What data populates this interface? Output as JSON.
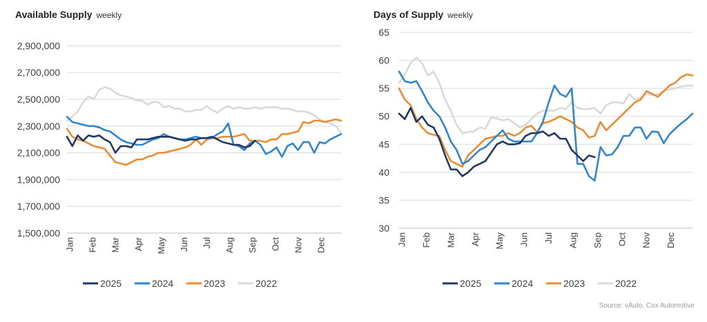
{
  "colors": {
    "2025": "#1f3864",
    "2024": "#2e86d1",
    "2023": "#ef8a2f",
    "2022": "#d9d9d9"
  },
  "source": "Source: vAuto, Cox Automotive",
  "chart_data": [
    {
      "type": "line",
      "title": "Available Supply",
      "subtitle": "weekly",
      "ylim": [
        1500000,
        3000000
      ],
      "yticks": [
        1500000,
        1700000,
        1900000,
        2100000,
        2300000,
        2500000,
        2700000,
        2900000
      ],
      "ytick_labels": [
        "1,500,000",
        "1,700,000",
        "1,900,000",
        "2,100,000",
        "2,300,000",
        "2,500,000",
        "2,700,000",
        "2,900,000"
      ],
      "xticks": [
        "Jan",
        "Feb",
        "Mar",
        "Apr",
        "May",
        "Jun",
        "Jul",
        "Aug",
        "Sep",
        "Oct",
        "Nov",
        "Dec"
      ],
      "grid": true,
      "legend": "bottom",
      "series": [
        {
          "name": "2025",
          "values": [
            2220000,
            2150000,
            2230000,
            2190000,
            2230000,
            2220000,
            2230000,
            2200000,
            2180000,
            2100000,
            2150000,
            2150000,
            2140000,
            2200000,
            2200000,
            2200000,
            2210000,
            2220000,
            2220000,
            2220000,
            2210000,
            2200000,
            2190000,
            2200000,
            2200000,
            2210000,
            2210000,
            2220000,
            2200000,
            2180000,
            2170000,
            2160000,
            2160000,
            2140000,
            2150000,
            2190000
          ]
        },
        {
          "name": "2024",
          "values": [
            2370000,
            2330000,
            2320000,
            2310000,
            2300000,
            2300000,
            2290000,
            2270000,
            2260000,
            2230000,
            2200000,
            2180000,
            2170000,
            2160000,
            2160000,
            2180000,
            2200000,
            2210000,
            2240000,
            2220000,
            2210000,
            2200000,
            2200000,
            2210000,
            2220000,
            2210000,
            2210000,
            2210000,
            2240000,
            2260000,
            2320000,
            2160000,
            2150000,
            2120000,
            2170000,
            2190000,
            2160000,
            2090000,
            2110000,
            2140000,
            2070000,
            2150000,
            2170000,
            2120000,
            2180000,
            2180000,
            2100000,
            2180000,
            2170000,
            2200000,
            2220000,
            2240000
          ]
        },
        {
          "name": "2023",
          "values": [
            2280000,
            2220000,
            2200000,
            2190000,
            2170000,
            2150000,
            2140000,
            2130000,
            2080000,
            2030000,
            2020000,
            2010000,
            2030000,
            2050000,
            2050000,
            2070000,
            2080000,
            2100000,
            2100000,
            2110000,
            2120000,
            2130000,
            2140000,
            2160000,
            2200000,
            2160000,
            2200000,
            2210000,
            2210000,
            2220000,
            2220000,
            2220000,
            2230000,
            2240000,
            2190000,
            2190000,
            2190000,
            2180000,
            2200000,
            2200000,
            2240000,
            2240000,
            2250000,
            2260000,
            2330000,
            2320000,
            2340000,
            2340000,
            2330000,
            2340000,
            2350000,
            2340000
          ]
        },
        {
          "name": "2022",
          "values": [
            2340000,
            2370000,
            2410000,
            2480000,
            2520000,
            2500000,
            2570000,
            2590000,
            2580000,
            2550000,
            2530000,
            2520000,
            2510000,
            2490000,
            2490000,
            2460000,
            2480000,
            2480000,
            2440000,
            2450000,
            2430000,
            2430000,
            2410000,
            2410000,
            2420000,
            2420000,
            2450000,
            2420000,
            2400000,
            2430000,
            2450000,
            2430000,
            2440000,
            2430000,
            2430000,
            2440000,
            2430000,
            2440000,
            2440000,
            2440000,
            2430000,
            2430000,
            2420000,
            2410000,
            2410000,
            2400000,
            2380000,
            2350000,
            2330000,
            2320000,
            2300000,
            2250000
          ]
        }
      ]
    },
    {
      "type": "line",
      "title": "Days of Supply",
      "subtitle": "weekly",
      "ylim": [
        30,
        65
      ],
      "yticks": [
        30,
        35,
        40,
        45,
        50,
        55,
        60,
        65
      ],
      "ytick_labels": [
        "30",
        "35",
        "40",
        "45",
        "50",
        "55",
        "60",
        "65"
      ],
      "xticks": [
        "Jan",
        "Feb",
        "Mar",
        "Apr",
        "May",
        "Jun",
        "Jul",
        "Aug",
        "Sep",
        "Oct",
        "Nov",
        "Dec"
      ],
      "grid": true,
      "legend": "bottom",
      "series": [
        {
          "name": "2025",
          "values": [
            50.5,
            49.5,
            51.5,
            49,
            50,
            48.5,
            48,
            46,
            43,
            40.5,
            40.5,
            39.3,
            40,
            41,
            41.5,
            42,
            43.5,
            45,
            45.5,
            45,
            45,
            45.2,
            46.5,
            47,
            47,
            47.3,
            46.5,
            47,
            46,
            46,
            44,
            43,
            42,
            43,
            42.7
          ]
        },
        {
          "name": "2024",
          "values": [
            58,
            56.3,
            56,
            56.3,
            54.5,
            52.5,
            51,
            50,
            48,
            45.5,
            44,
            41.5,
            42,
            43,
            44,
            44.5,
            45.5,
            46.5,
            47.5,
            46,
            45.5,
            45.5,
            45.5,
            45.5,
            47,
            49,
            52.5,
            55.5,
            54,
            53.5,
            55,
            41.5,
            41.5,
            39.3,
            38.5,
            44.5,
            43,
            43.2,
            44.5,
            46.5,
            46.5,
            48,
            48,
            46,
            47.3,
            47.2,
            45.2,
            46.8,
            47.8,
            48.7,
            49.5,
            50.5
          ]
        },
        {
          "name": "2023",
          "values": [
            55,
            53,
            52,
            49.5,
            48,
            47,
            46.7,
            46.5,
            44,
            42,
            41.5,
            41,
            43,
            44,
            45,
            46,
            46.2,
            46.5,
            46.5,
            47,
            46.5,
            47,
            48,
            48.3,
            47.2,
            48.8,
            49,
            49.5,
            50,
            49.5,
            49,
            48,
            47.5,
            46.2,
            46.5,
            49,
            47.5,
            48.5,
            49.5,
            50.5,
            51.5,
            52.5,
            53,
            54.5,
            54,
            53.5,
            54.5,
            55.5,
            56,
            57,
            57.5,
            57.3
          ]
        },
        {
          "name": "2022",
          "values": [
            56,
            57.5,
            59.5,
            60.5,
            59.5,
            57.3,
            58,
            56,
            53,
            51,
            48.5,
            47,
            47.2,
            47.3,
            48,
            47.8,
            49.8,
            49.6,
            49.3,
            49.5,
            48.8,
            48,
            48.5,
            49.5,
            50.5,
            51,
            51,
            51,
            51.5,
            51.3,
            52.5,
            51.5,
            51.3,
            51.3,
            51.5,
            50.5,
            52,
            52.5,
            52.5,
            52.3,
            54,
            53,
            53.3,
            54,
            53.8,
            54,
            54.5,
            54.8,
            55,
            55.3,
            55.5,
            55.5
          ]
        }
      ]
    }
  ]
}
